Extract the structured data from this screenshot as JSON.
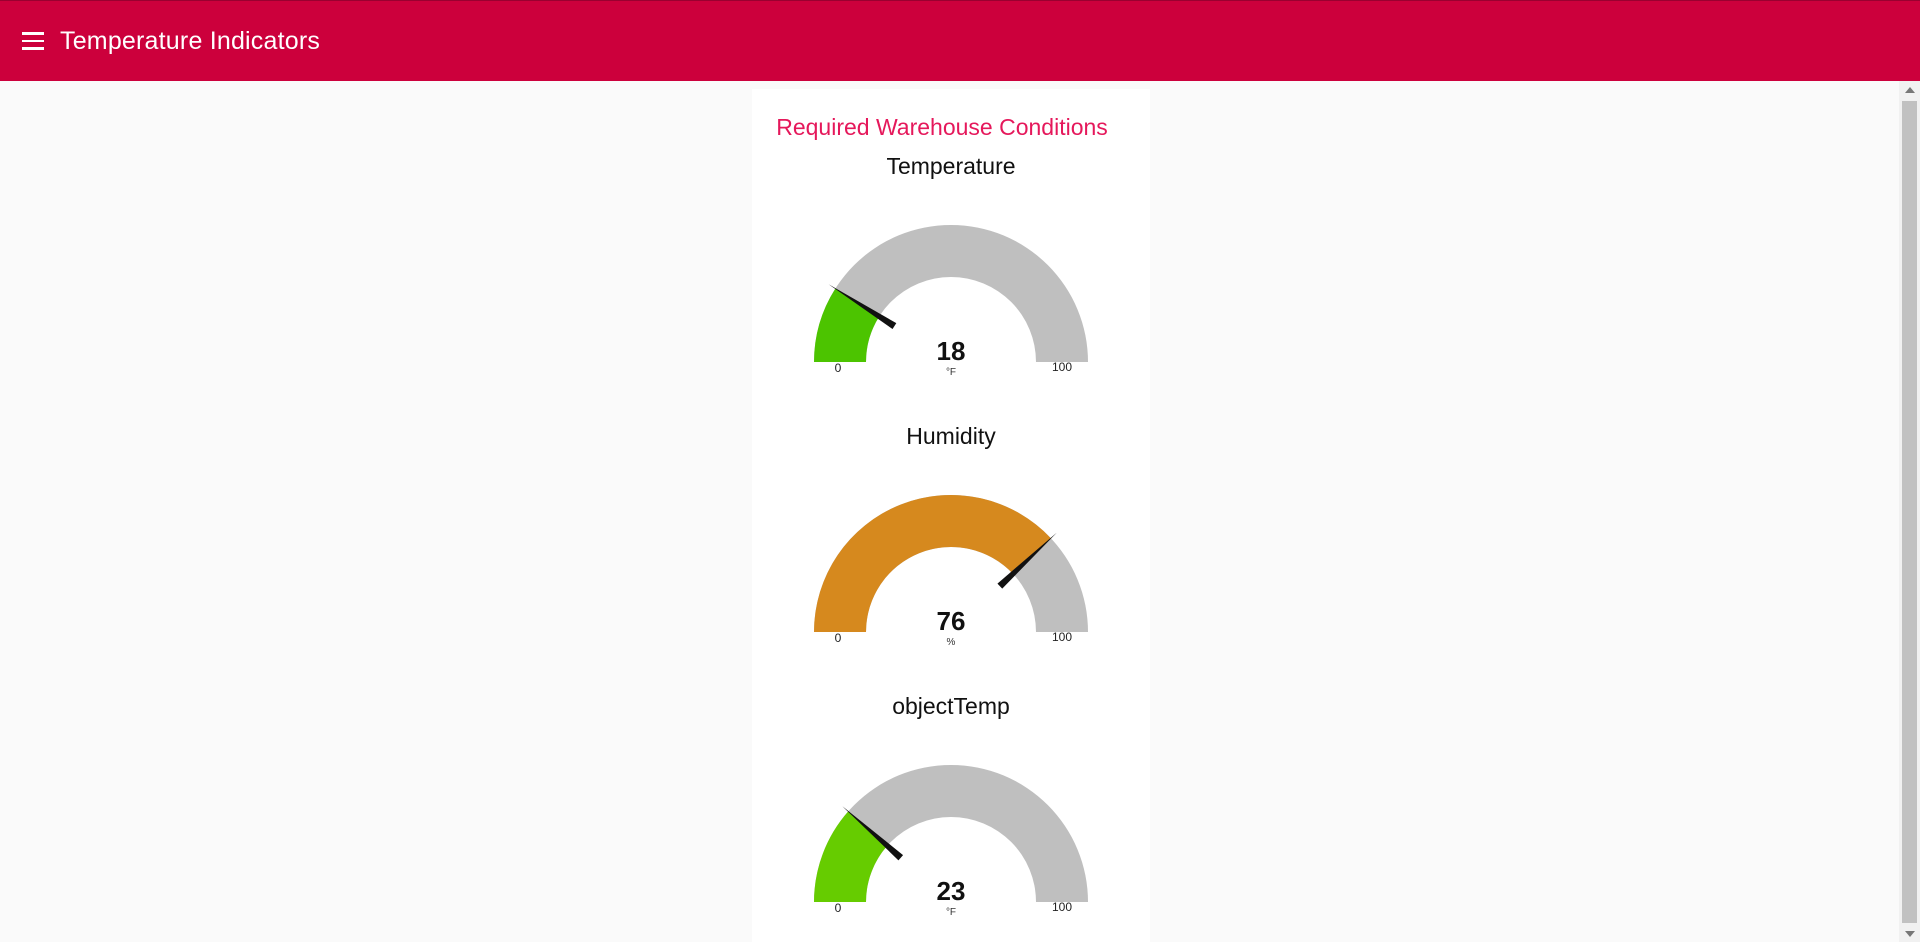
{
  "header": {
    "title": "Temperature Indicators",
    "background_color": "#cc003c"
  },
  "group": {
    "title": "Required Warehouse Conditions",
    "title_color": "#e5185b"
  },
  "gauges": [
    {
      "title": "Temperature",
      "value": 18,
      "unit": "°F",
      "min": 0,
      "max": 100,
      "fill_color": "#4cc400"
    },
    {
      "title": "Humidity",
      "value": 76,
      "unit": "%",
      "min": 0,
      "max": 100,
      "fill_color": "#d6891e"
    },
    {
      "title": "objectTemp",
      "value": 23,
      "unit": "°F",
      "min": 0,
      "max": 100,
      "fill_color": "#66cc00"
    }
  ],
  "colors": {
    "gauge_track": "#bfbfbf",
    "needle": "#111111"
  }
}
